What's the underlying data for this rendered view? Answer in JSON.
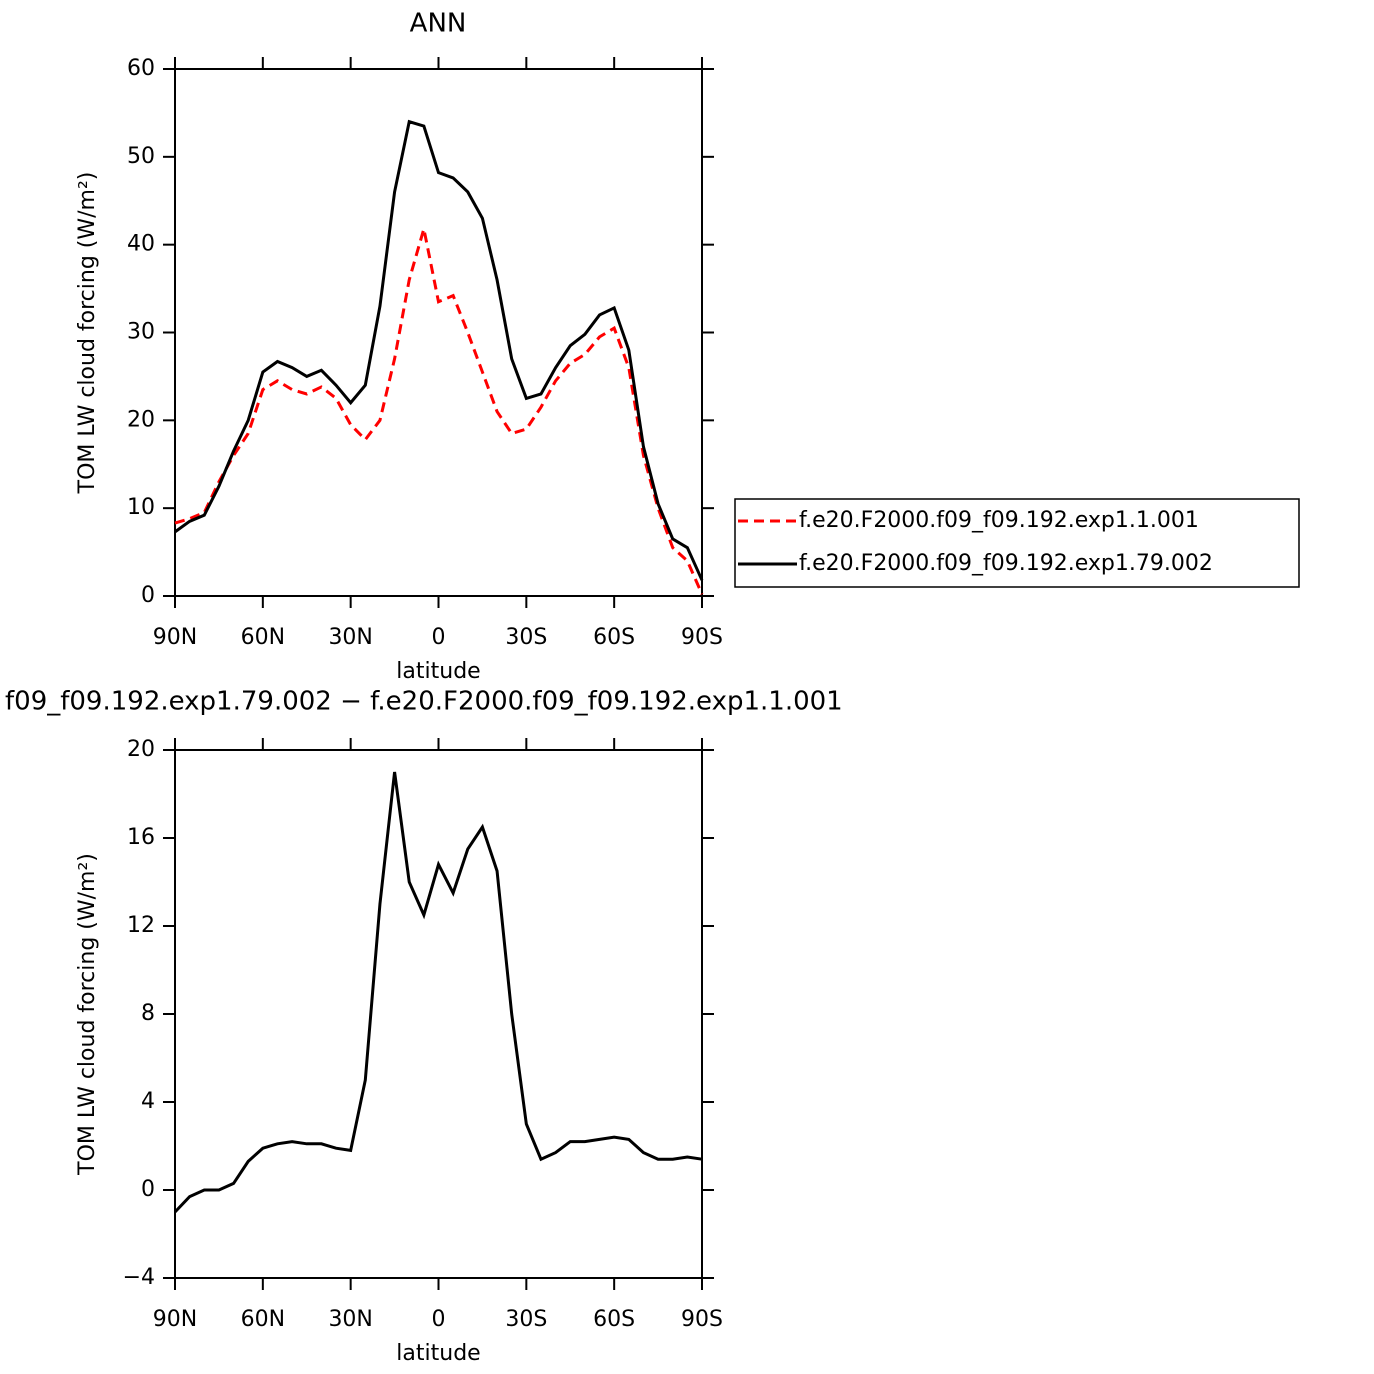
{
  "chart_data": [
    {
      "type": "line",
      "title": "ANN",
      "x_label": "latitude",
      "y_label": "TOM LW cloud forcing (W/m²)",
      "x": [
        90,
        85,
        80,
        75,
        70,
        65,
        60,
        55,
        50,
        45,
        40,
        35,
        30,
        25,
        20,
        15,
        10,
        5,
        0,
        -5,
        -10,
        -15,
        -20,
        -25,
        -30,
        -35,
        -40,
        -45,
        -50,
        -55,
        -60,
        -65,
        -70,
        -75,
        -80,
        -85,
        -90
      ],
      "xlim": [
        90,
        -90
      ],
      "xticks": [
        {
          "value": 90,
          "label": "90N"
        },
        {
          "value": 60,
          "label": "60N"
        },
        {
          "value": 30,
          "label": "30N"
        },
        0,
        {
          "value": -30,
          "label": "30S"
        },
        {
          "value": -60,
          "label": "60S"
        },
        {
          "value": -90,
          "label": "90S"
        }
      ],
      "ylim": [
        0,
        60
      ],
      "yticks": [
        0,
        10,
        20,
        30,
        40,
        50,
        60
      ],
      "legend": "right",
      "series": [
        {
          "name": "f.e20.F2000.f09_f09.192.exp1.1.001",
          "color": "#ff0000",
          "style": "dashed",
          "values": [
            8.3,
            8.8,
            9.5,
            13,
            16,
            18.5,
            23.5,
            24.5,
            23.5,
            23,
            23.8,
            22.5,
            19.5,
            17.8,
            20,
            27,
            36,
            41.8,
            33.5,
            34.2,
            30,
            25.5,
            21,
            18.5,
            19,
            21.5,
            24.5,
            26.5,
            27.5,
            29.5,
            30.5,
            26,
            16,
            10,
            5.5,
            4,
            0.2
          ]
        },
        {
          "name": "f.e20.F2000.f09_f09.192.exp1.79.002",
          "color": "#000000",
          "style": "solid",
          "values": [
            7.3,
            8.5,
            9.2,
            12.5,
            16.5,
            20,
            25.5,
            26.7,
            26,
            25,
            25.7,
            24,
            22,
            24,
            33,
            46,
            54,
            53.5,
            48.2,
            47.6,
            46,
            43,
            36,
            27,
            22.5,
            23,
            26,
            28.5,
            29.8,
            32,
            32.8,
            28,
            17,
            10.5,
            6.5,
            5.5,
            1.8
          ]
        }
      ]
    },
    {
      "type": "line",
      "title": "f09_f09.192.exp1.79.002 − f.e20.F2000.f09_f09.192.exp1.1.001",
      "x_label": "latitude",
      "y_label": "TOM LW cloud forcing (W/m²)",
      "x": [
        90,
        85,
        80,
        75,
        70,
        65,
        60,
        55,
        50,
        45,
        40,
        35,
        30,
        25,
        20,
        15,
        10,
        5,
        0,
        -5,
        -10,
        -15,
        -20,
        -25,
        -30,
        -35,
        -40,
        -45,
        -50,
        -55,
        -60,
        -65,
        -70,
        -75,
        -80,
        -85,
        -90
      ],
      "xlim": [
        90,
        -90
      ],
      "xticks": [
        {
          "value": 90,
          "label": "90N"
        },
        {
          "value": 60,
          "label": "60N"
        },
        {
          "value": 30,
          "label": "30N"
        },
        0,
        {
          "value": -30,
          "label": "30S"
        },
        {
          "value": -60,
          "label": "60S"
        },
        {
          "value": -90,
          "label": "90S"
        }
      ],
      "ylim": [
        -4,
        20
      ],
      "yticks": [
        {
          "value": -4,
          "label": "−4"
        },
        0,
        4,
        8,
        12,
        16,
        20
      ],
      "color": "#000000",
      "values": [
        -1,
        -0.3,
        0,
        0,
        0.3,
        1.3,
        1.9,
        2.1,
        2.2,
        2.1,
        2.1,
        1.9,
        1.8,
        5,
        13,
        19,
        14,
        12.5,
        14.8,
        13.5,
        15.5,
        16.5,
        14.5,
        8,
        3,
        1.4,
        1.7,
        2.2,
        2.2,
        2.3,
        2.4,
        2.3,
        1.7,
        1.4,
        1.4,
        1.5,
        1.4
      ]
    }
  ]
}
